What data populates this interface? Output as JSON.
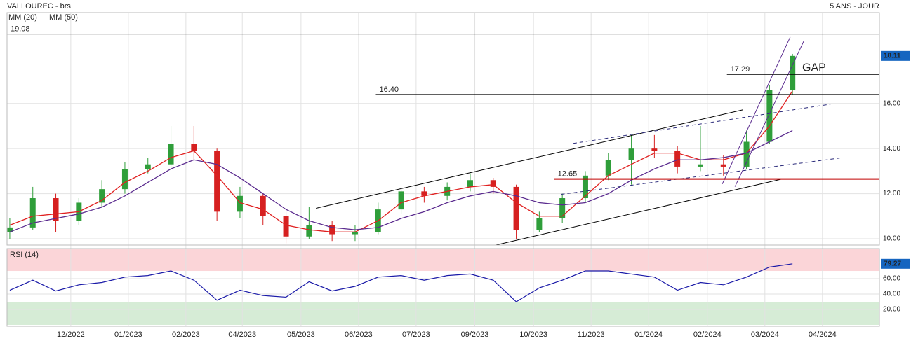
{
  "chart_data": [
    {
      "type": "candlestick",
      "title": "VALLOUREC - brs",
      "subtitle": "5 ANS - JOUR",
      "x": [
        0,
        2,
        4,
        6,
        8,
        10,
        12,
        14,
        16,
        18,
        20,
        22,
        24,
        26,
        28,
        30,
        32,
        34,
        36,
        38,
        40,
        42,
        44,
        46,
        48,
        50,
        52,
        54,
        56,
        58,
        60,
        62,
        64,
        66,
        68
      ],
      "open": [
        10.3,
        10.5,
        11.8,
        10.8,
        11.6,
        12.2,
        13.1,
        13.3,
        14.2,
        13.9,
        11.2,
        11.9,
        11.0,
        10.1,
        10.6,
        10.2,
        10.3,
        11.3,
        12.1,
        11.9,
        12.3,
        12.6,
        12.3,
        10.4,
        10.9,
        11.8,
        12.8,
        13.5,
        14.0,
        13.9,
        13.2,
        13.3,
        13.2,
        14.3,
        16.6
      ],
      "high": [
        10.9,
        12.3,
        12.0,
        11.8,
        12.6,
        13.4,
        13.6,
        15.0,
        15.0,
        14.0,
        12.3,
        12.0,
        11.2,
        11.4,
        10.8,
        10.6,
        11.6,
        12.2,
        12.3,
        12.5,
        12.9,
        12.7,
        12.4,
        11.2,
        12.0,
        13.0,
        13.8,
        14.6,
        14.6,
        14.1,
        15.0,
        13.7,
        14.8,
        16.8,
        18.2
      ],
      "low": [
        10.0,
        10.4,
        10.3,
        10.6,
        11.4,
        12.0,
        12.9,
        13.1,
        13.5,
        10.8,
        10.9,
        10.6,
        9.8,
        10.0,
        9.9,
        9.9,
        10.2,
        11.1,
        11.6,
        11.7,
        12.1,
        12.0,
        10.0,
        10.3,
        10.7,
        11.6,
        12.6,
        12.4,
        13.6,
        12.9,
        13.0,
        12.8,
        13.1,
        14.2,
        16.4
      ],
      "close": [
        10.5,
        11.8,
        10.8,
        11.6,
        12.2,
        13.1,
        13.3,
        14.2,
        13.9,
        11.2,
        11.9,
        11.0,
        10.1,
        10.6,
        10.2,
        10.3,
        11.3,
        12.1,
        11.9,
        12.3,
        12.6,
        12.3,
        10.4,
        10.9,
        11.8,
        12.8,
        13.5,
        14.0,
        13.9,
        13.2,
        13.3,
        13.2,
        14.3,
        16.6,
        18.11
      ],
      "up_color": "#2f9e3a",
      "down_color": "#d62020",
      "series": [
        {
          "name": "MM (20)",
          "color": "#e02020",
          "values": [
            10.6,
            11.0,
            11.1,
            11.2,
            11.7,
            12.5,
            13.0,
            13.6,
            13.9,
            12.8,
            11.6,
            11.3,
            10.6,
            10.4,
            10.3,
            10.3,
            10.8,
            11.6,
            11.9,
            12.1,
            12.3,
            12.4,
            11.6,
            11.0,
            11.0,
            11.9,
            12.8,
            13.3,
            13.8,
            13.8,
            13.5,
            13.5,
            13.8,
            15.0,
            16.56
          ]
        },
        {
          "name": "MM (50)",
          "color": "#5b2c8f",
          "values": [
            10.3,
            10.7,
            10.9,
            11.1,
            11.4,
            11.9,
            12.5,
            13.1,
            13.5,
            13.3,
            12.7,
            12.0,
            11.3,
            10.8,
            10.5,
            10.4,
            10.5,
            10.9,
            11.2,
            11.6,
            11.9,
            12.1,
            11.9,
            11.6,
            11.5,
            11.6,
            12.0,
            12.6,
            13.1,
            13.5,
            13.5,
            13.6,
            13.8,
            14.3,
            14.8
          ]
        }
      ],
      "xlim": [
        -0.24,
        75.55
      ],
      "ylim": [
        9.72,
        20.03
      ],
      "yticks": [
        {
          "value": 10,
          "label": "10.00"
        },
        {
          "value": 12,
          "label": "12.00"
        },
        {
          "value": 14,
          "label": "14.00"
        },
        {
          "value": 16,
          "label": "16.00"
        }
      ],
      "badge_color": "#1565c0",
      "levels": [
        {
          "value": 19.08,
          "color": "#000000"
        },
        {
          "value": 17.29,
          "start": 62.3,
          "color": "#000000"
        },
        {
          "value": 16.4,
          "label": "16.40",
          "start": 31.8,
          "color": "#000000"
        },
        {
          "value": 12.65,
          "start": 47.3,
          "color": "#c00000"
        }
      ],
      "trendlines": [
        {
          "x": [
            26.6,
            63.7
          ],
          "y": [
            11.35,
            15.72
          ],
          "color": "#000000",
          "dashed": false
        },
        {
          "x": [
            41.8,
            67.1
          ],
          "y": [
            9.67,
            12.65
          ],
          "color": "#000000",
          "dashed": false
        },
        {
          "x": [
            48.96,
            71.3
          ],
          "y": [
            14.23,
            15.97
          ],
          "color": "#2a2a7a",
          "dashed": true
        },
        {
          "x": [
            47.9,
            72.1
          ],
          "y": [
            11.97,
            13.58
          ],
          "color": "#2a2a7a",
          "dashed": true
        },
        {
          "x": [
            61.9,
            67.8
          ],
          "y": [
            12.43,
            18.95
          ],
          "color": "#5b2c8f",
          "dashed": false
        },
        {
          "x": [
            63.0,
            69.0
          ],
          "y": [
            12.31,
            18.79
          ],
          "color": "#5b2c8f",
          "dashed": false
        }
      ],
      "annotations": [
        {
          "text": "GAP"
        }
      ]
    },
    {
      "type": "line",
      "x": [
        0,
        2,
        4,
        6,
        8,
        10,
        12,
        14,
        16,
        18,
        20,
        22,
        24,
        26,
        28,
        30,
        32,
        34,
        36,
        38,
        40,
        42,
        44,
        46,
        48,
        50,
        52,
        54,
        56,
        58,
        60,
        62,
        64,
        66,
        68
      ],
      "series": [
        {
          "name": "RSI (14)",
          "color": "#1a1aa8",
          "values": [
            45,
            58,
            44,
            52,
            55,
            62,
            64,
            70,
            58,
            32,
            45,
            38,
            36,
            56,
            44,
            50,
            62,
            64,
            58,
            64,
            66,
            58,
            30,
            48,
            58,
            70,
            70,
            66,
            62,
            45,
            55,
            52,
            62,
            75,
            79.27
          ]
        }
      ],
      "xlim": [
        -0.24,
        75.55
      ],
      "xticks": [
        {
          "value": 5.3,
          "label": "12/2022"
        },
        {
          "value": 10.3,
          "label": "01/2023"
        },
        {
          "value": 15.3,
          "label": "02/2023"
        },
        {
          "value": 20.2,
          "label": "04/2023"
        },
        {
          "value": 25.3,
          "label": "05/2023"
        },
        {
          "value": 30.3,
          "label": "06/2023"
        },
        {
          "value": 35.3,
          "label": "07/2023"
        },
        {
          "value": 40.4,
          "label": "09/2023"
        },
        {
          "value": 45.5,
          "label": "10/2023"
        },
        {
          "value": 50.5,
          "label": "11/2023"
        },
        {
          "value": 55.5,
          "label": "01/2024"
        },
        {
          "value": 60.6,
          "label": "02/2024"
        },
        {
          "value": 65.6,
          "label": "03/2024"
        },
        {
          "value": 70.6,
          "label": "04/2024"
        }
      ],
      "ylim": [
        -1.8,
        99.1
      ],
      "yticks": [
        {
          "value": 20,
          "label": "20.00"
        },
        {
          "value": 40,
          "label": "40.00"
        },
        {
          "value": 60,
          "label": "60.00"
        }
      ],
      "zones": [
        {
          "from": 70,
          "to": 100,
          "color": "#fbd5d8"
        },
        {
          "from": 0,
          "to": 30,
          "color": "#d6ecd6"
        }
      ],
      "badge_color": "#1565c0"
    }
  ]
}
